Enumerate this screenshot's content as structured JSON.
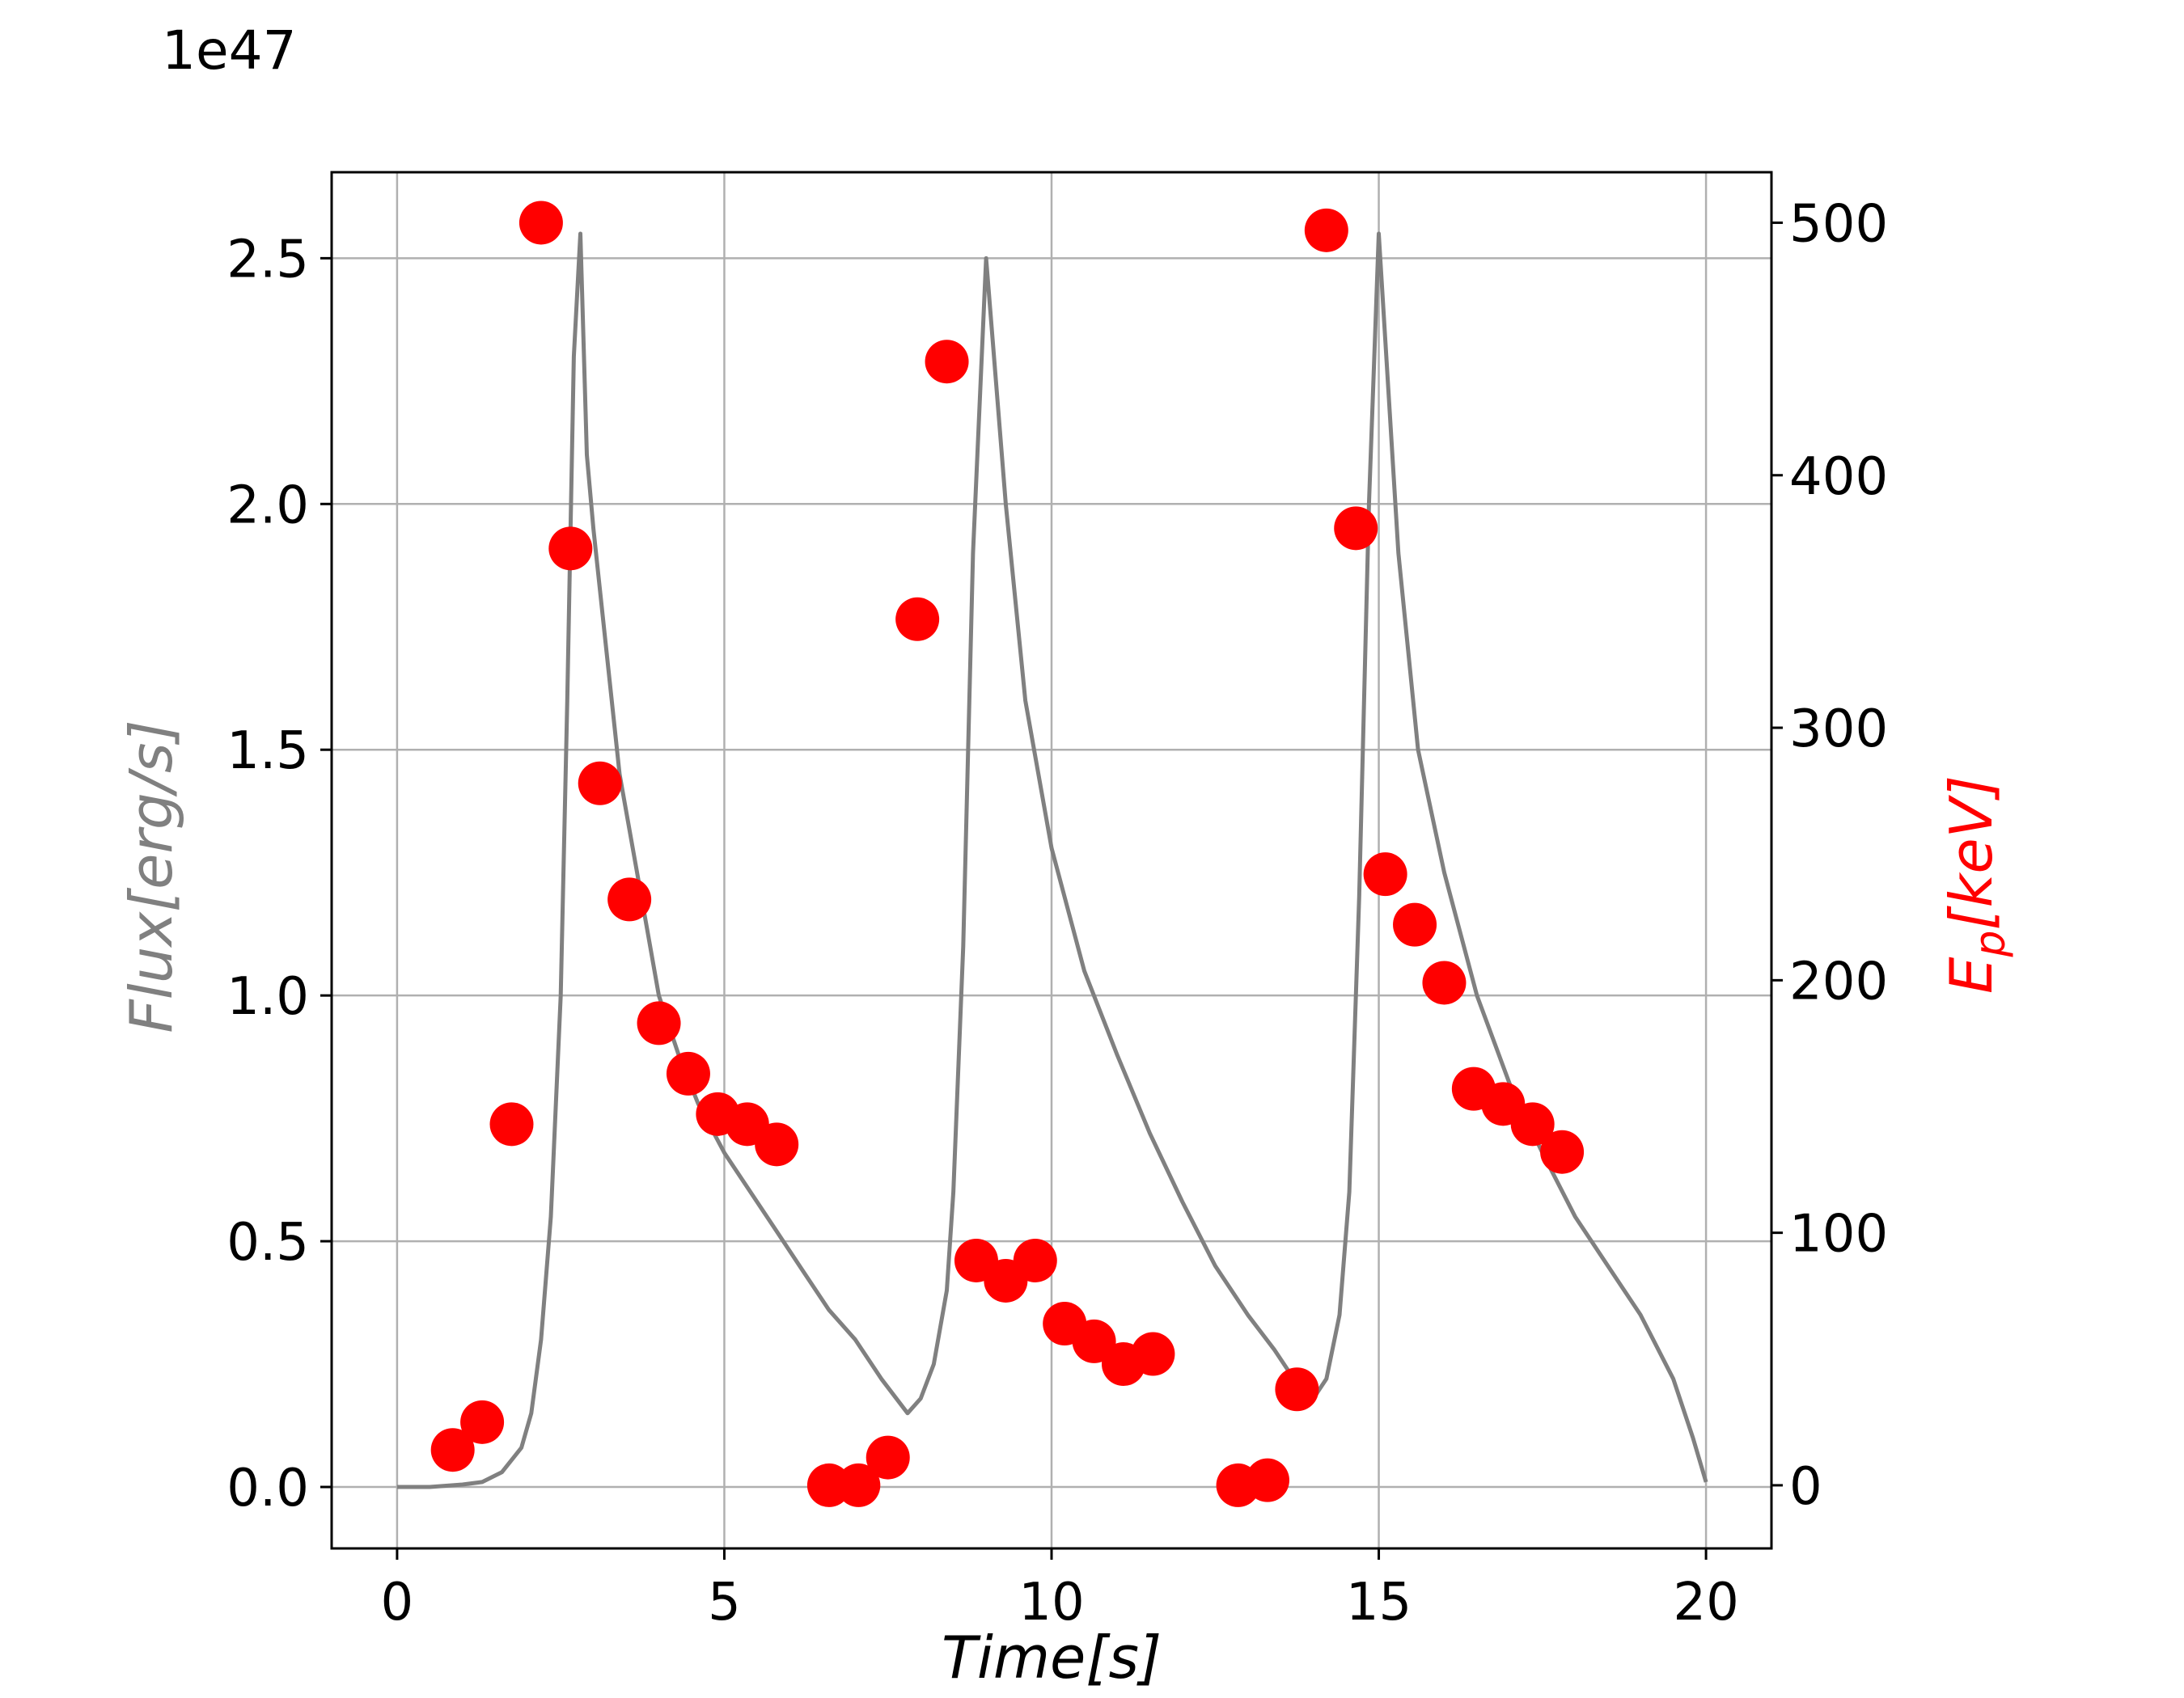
{
  "chart_data": {
    "type": "line",
    "xlabel": "Time[s]",
    "ylabel": "Flux[erg/s]",
    "ylabel_right": "E_p[keV]",
    "y_offset_label": "1e47",
    "xlim": [
      -1,
      21
    ],
    "ylim": [
      -0.125,
      2.675
    ],
    "y2lim": [
      -25,
      520
    ],
    "x_ticks": [
      0,
      5,
      10,
      15,
      20
    ],
    "x_tick_labels": [
      "0",
      "5",
      "10",
      "15",
      "20"
    ],
    "y_ticks": [
      0.0,
      0.5,
      1.0,
      1.5,
      2.0,
      2.5
    ],
    "y_tick_labels": [
      "0.0",
      "0.5",
      "1.0",
      "1.5",
      "2.0",
      "2.5"
    ],
    "y2_ticks": [
      0,
      100,
      200,
      300,
      400,
      500
    ],
    "y2_tick_labels": [
      "0",
      "100",
      "200",
      "300",
      "400",
      "500"
    ],
    "grid": true,
    "colors": {
      "flux": "#808080",
      "ep": "#ff0000",
      "grid": "#b0b0b0"
    },
    "series": [
      {
        "axis": "left",
        "style": "line",
        "x": [
          0,
          0.5,
          1.0,
          1.3,
          1.6,
          1.9,
          2.05,
          2.2,
          2.35,
          2.5,
          2.6,
          2.7,
          2.8,
          2.9,
          3.0,
          3.2,
          3.4,
          3.6,
          3.8,
          4.0,
          4.3,
          4.6,
          5.0,
          5.4,
          5.8,
          6.2,
          6.6,
          7.0,
          7.4,
          7.8,
          8.0,
          8.2,
          8.4,
          8.5,
          8.65,
          8.8,
          9.0,
          9.3,
          9.6,
          10.0,
          10.5,
          11.0,
          11.5,
          12.0,
          12.5,
          13.0,
          13.4,
          13.8,
          14.0,
          14.2,
          14.4,
          14.55,
          14.7,
          14.85,
          15.0,
          15.3,
          15.6,
          16.0,
          16.5,
          17.0,
          17.5,
          18.0,
          18.5,
          19.0,
          19.5,
          19.8,
          20.0
        ],
        "values": [
          0.0,
          0.0,
          0.005,
          0.01,
          0.03,
          0.08,
          0.15,
          0.3,
          0.55,
          1.0,
          1.6,
          2.3,
          2.55,
          2.1,
          1.95,
          1.7,
          1.45,
          1.3,
          1.15,
          1.0,
          0.88,
          0.78,
          0.68,
          0.6,
          0.52,
          0.44,
          0.36,
          0.3,
          0.22,
          0.15,
          0.18,
          0.25,
          0.4,
          0.6,
          1.1,
          1.9,
          2.5,
          2.0,
          1.6,
          1.3,
          1.05,
          0.88,
          0.72,
          0.58,
          0.45,
          0.35,
          0.28,
          0.2,
          0.18,
          0.22,
          0.35,
          0.6,
          1.2,
          2.0,
          2.55,
          1.9,
          1.5,
          1.25,
          1.0,
          0.82,
          0.68,
          0.55,
          0.45,
          0.35,
          0.22,
          0.1,
          0.01
        ]
      },
      {
        "axis": "right",
        "style": "scatter",
        "x": [
          0.85,
          1.3,
          1.75,
          2.2,
          2.65,
          3.1,
          3.55,
          4.0,
          4.45,
          4.9,
          5.35,
          5.8,
          6.6,
          7.05,
          7.5,
          7.95,
          8.4,
          8.85,
          9.3,
          9.75,
          10.2,
          10.65,
          11.1,
          11.55,
          12.85,
          13.3,
          13.75,
          14.2,
          14.65,
          15.1,
          15.55,
          16.0,
          16.45,
          16.9,
          17.35,
          17.8
        ],
        "values": [
          14,
          25,
          143,
          500,
          371,
          278,
          232,
          183,
          163,
          147,
          143,
          135,
          0,
          0,
          11,
          343,
          445,
          89,
          81,
          89,
          64,
          57,
          48,
          52,
          0,
          2,
          38,
          497,
          379,
          242,
          222,
          199,
          157,
          151,
          143,
          132
        ]
      }
    ]
  }
}
